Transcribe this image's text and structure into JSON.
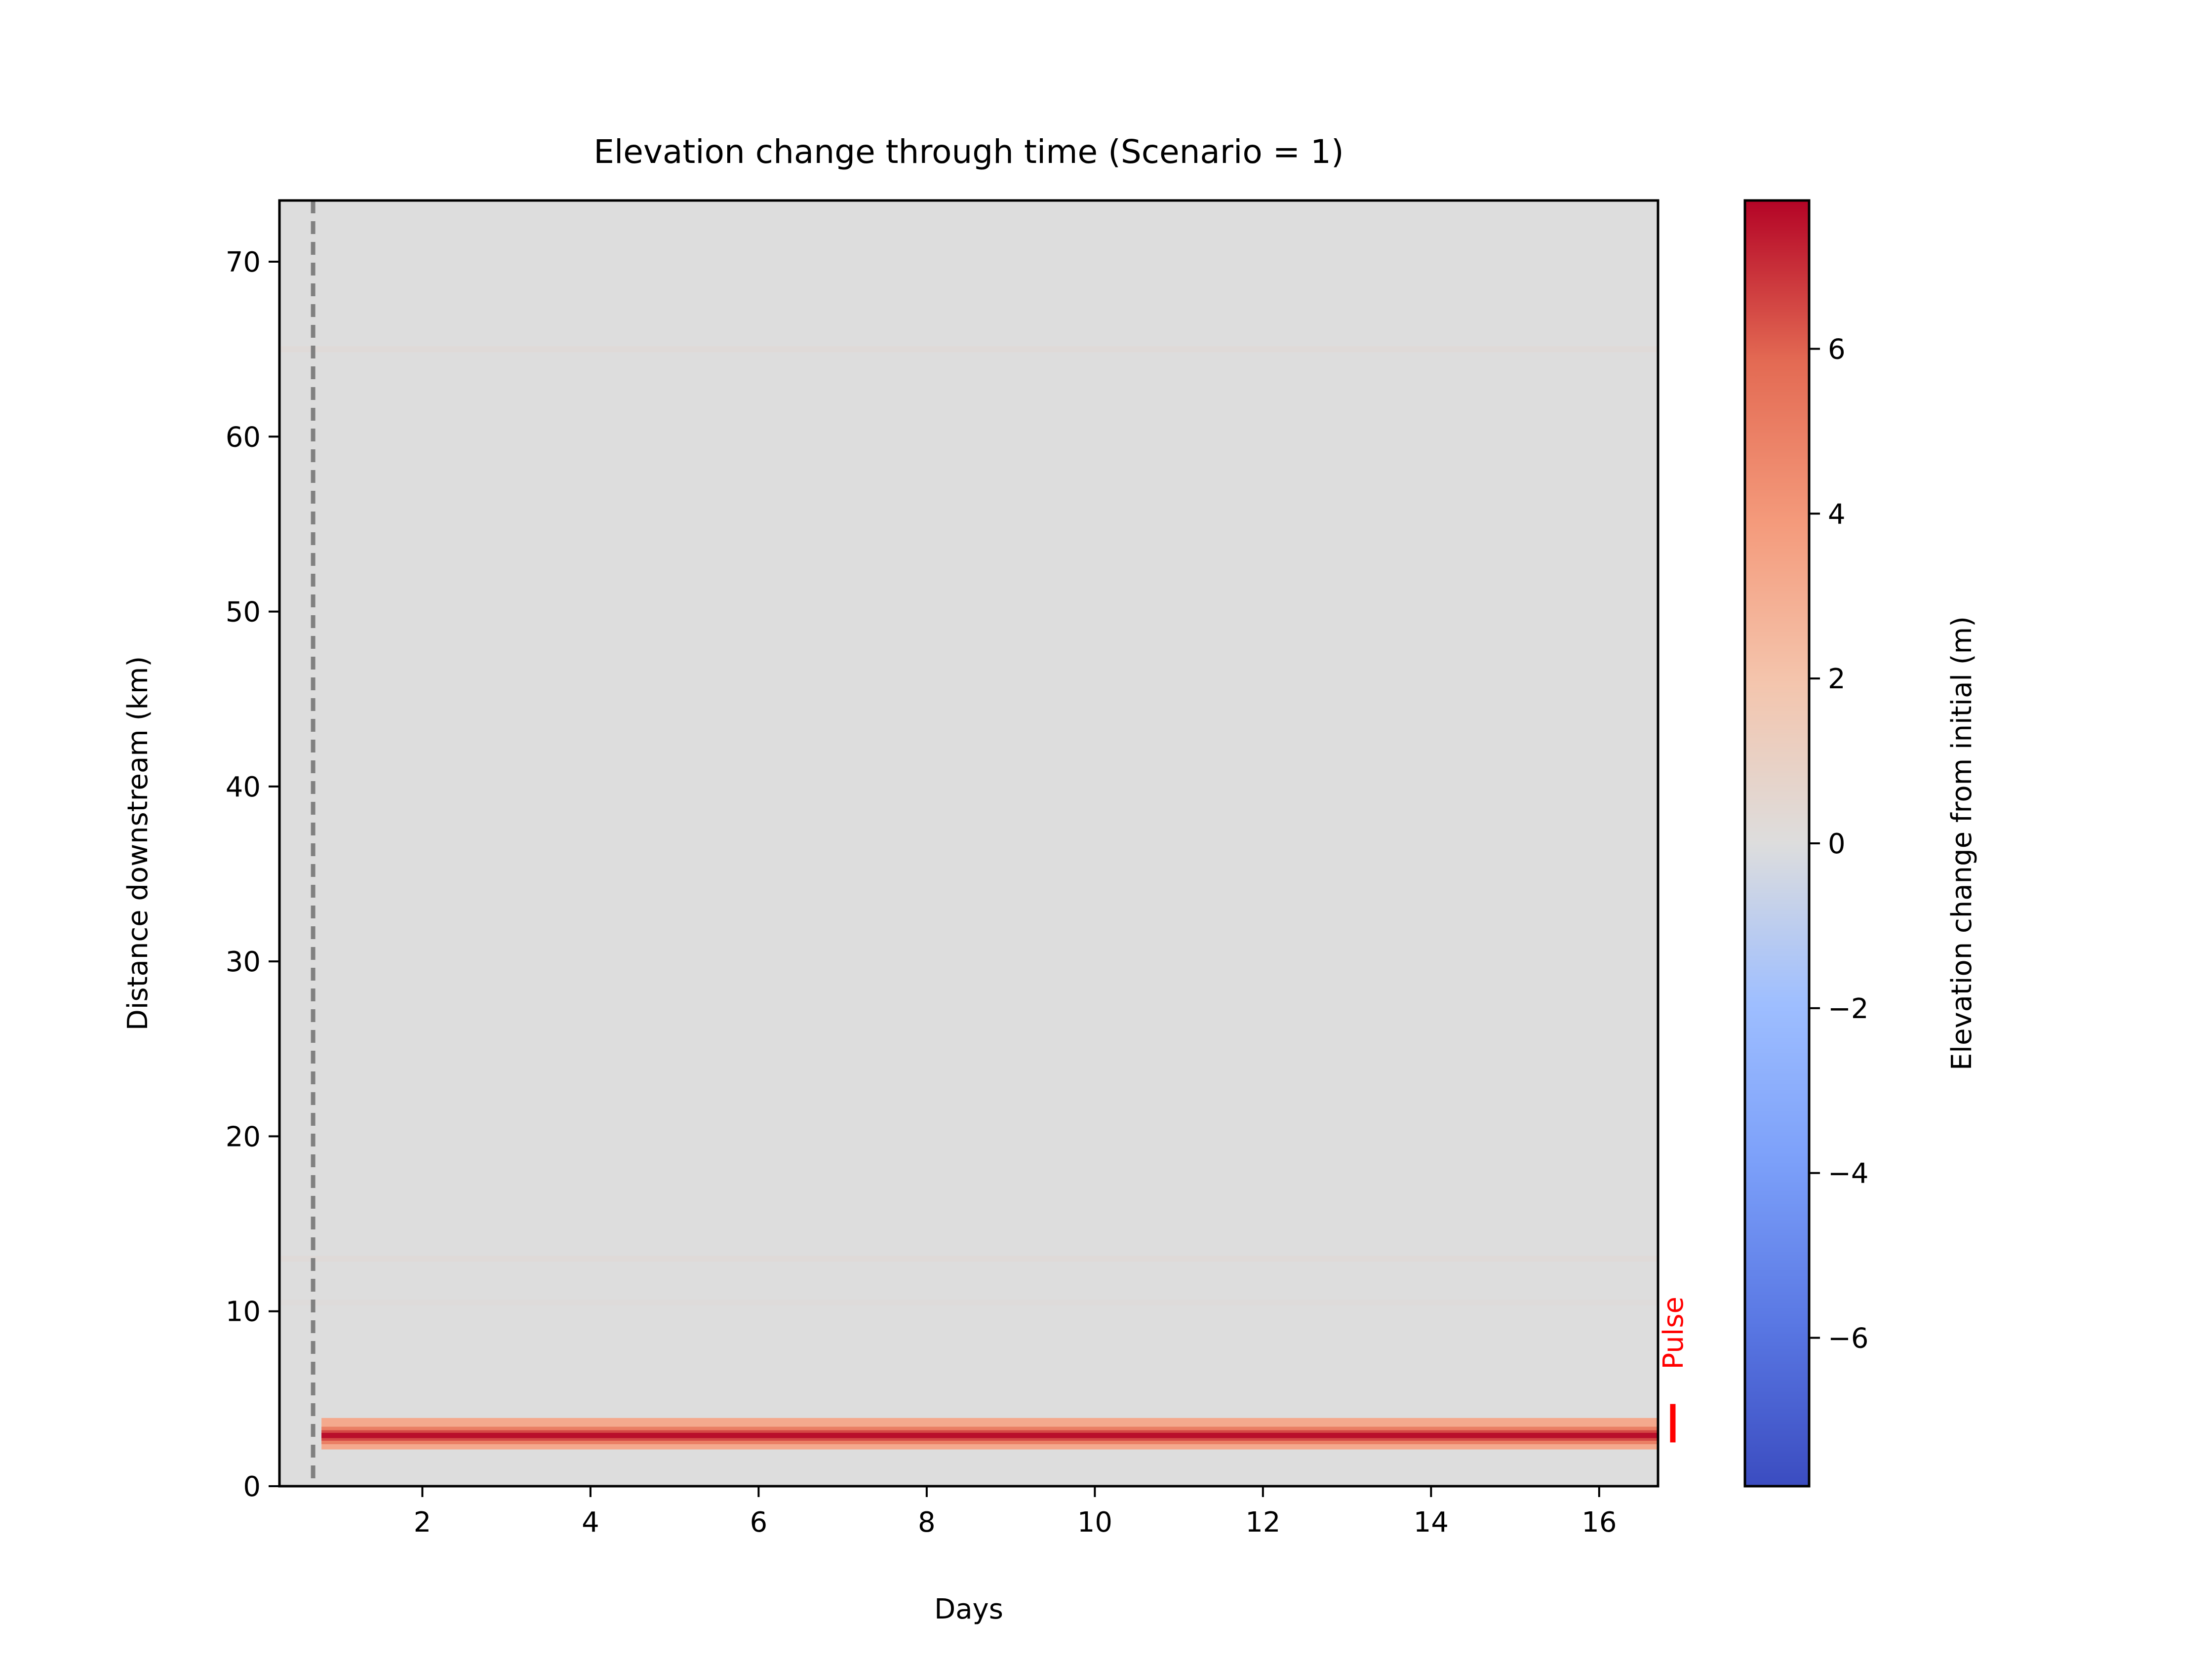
{
  "chart_data": {
    "type": "heatmap",
    "title": "Elevation change through time (Scenario = 1)",
    "xlabel": "Days",
    "ylabel": "Distance downstream (km)",
    "xlim": [
      0.3,
      16.7
    ],
    "ylim": [
      0,
      73.5
    ],
    "x_ticks": [
      2,
      4,
      6,
      8,
      10,
      12,
      14,
      16
    ],
    "y_ticks": [
      0,
      10,
      20,
      30,
      40,
      50,
      60,
      70
    ],
    "grid": false,
    "colormap": "coolwarm",
    "background_value": 0,
    "colorbar": {
      "label": "Elevation change from initial (m)",
      "range": [
        -7.8,
        7.8
      ],
      "ticks": [
        -6,
        -4,
        -2,
        0,
        2,
        4,
        6
      ]
    },
    "reference_line": {
      "x": 0.7,
      "style": "dashed",
      "color": "#808080"
    },
    "bands": [
      {
        "x_start": 0.8,
        "x_end": 16.7,
        "y_start": 2.1,
        "y_end": 3.9,
        "value": 3.2
      },
      {
        "x_start": 0.8,
        "x_end": 16.7,
        "y_start": 2.4,
        "y_end": 3.4,
        "value": 5.0
      },
      {
        "x_start": 0.8,
        "x_end": 16.7,
        "y_start": 2.6,
        "y_end": 3.2,
        "value": 6.5
      },
      {
        "x_start": 0.8,
        "x_end": 16.7,
        "y_start": 2.75,
        "y_end": 3.05,
        "value": 7.6
      }
    ],
    "faint_stripes": [
      {
        "y": 65,
        "value": 0.3
      },
      {
        "y": 13,
        "value": 0.3
      },
      {
        "y": 10.5,
        "value": 0.2
      }
    ],
    "annotation": {
      "text": "Pulse",
      "color": "#ff0000",
      "y_start": 2.5,
      "y_end": 4.7
    }
  }
}
